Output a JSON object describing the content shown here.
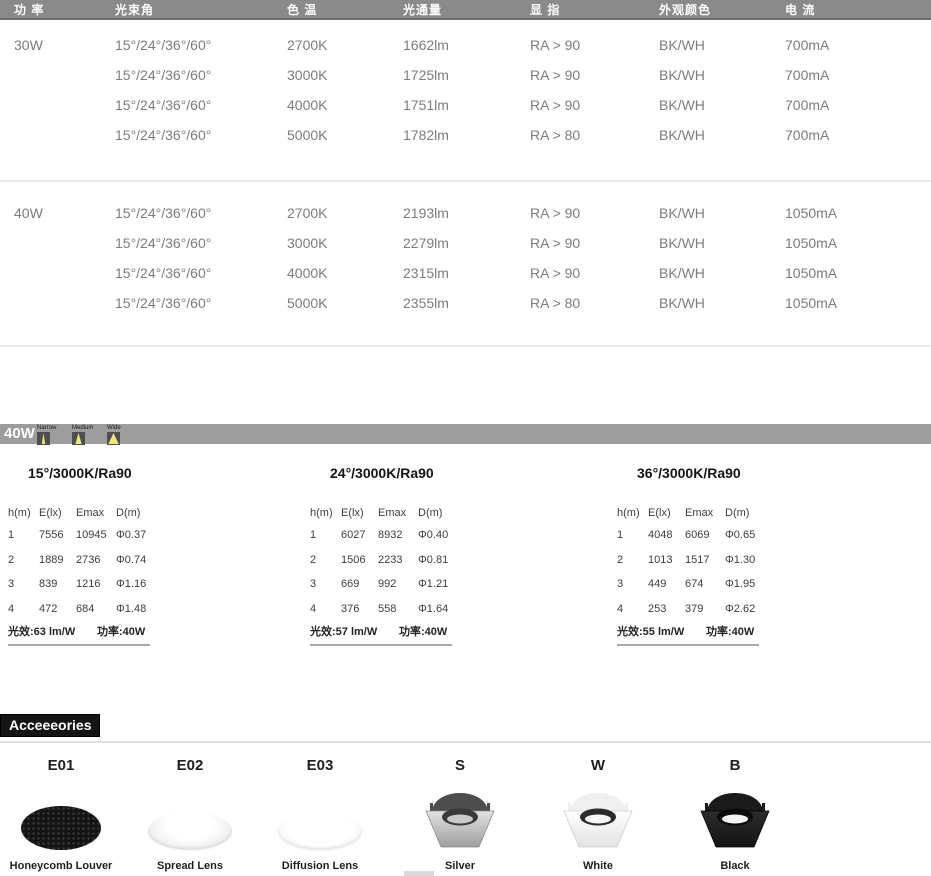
{
  "colors": {
    "header_bar": "#8a8a8a",
    "beam_bar": "#9d9d9d",
    "beam_yellow": "#ece584",
    "badge_bg": "#141414",
    "body_text": "#7c7c7c"
  },
  "spec_table": {
    "headers": [
      "功 率",
      "光束角",
      "色 温",
      "光通量",
      "显 指",
      "外观颜色",
      "电 流"
    ],
    "groups": [
      {
        "power": "30W",
        "rows": [
          {
            "beam": "15°/24°/36°/60°",
            "cct": "2700K",
            "flux": "1662lm",
            "cri": "RA > 90",
            "finish": "BK/WH",
            "current": "700mA"
          },
          {
            "beam": "15°/24°/36°/60°",
            "cct": "3000K",
            "flux": "1725lm",
            "cri": "RA > 90",
            "finish": "BK/WH",
            "current": "700mA"
          },
          {
            "beam": "15°/24°/36°/60°",
            "cct": "4000K",
            "flux": "1751lm",
            "cri": "RA > 90",
            "finish": "BK/WH",
            "current": "700mA"
          },
          {
            "beam": "15°/24°/36°/60°",
            "cct": "5000K",
            "flux": "1782lm",
            "cri": "RA > 80",
            "finish": "BK/WH",
            "current": "700mA"
          }
        ]
      },
      {
        "power": "40W",
        "rows": [
          {
            "beam": "15°/24°/36°/60°",
            "cct": "2700K",
            "flux": "2193lm",
            "cri": "RA > 90",
            "finish": "BK/WH",
            "current": "1050mA"
          },
          {
            "beam": "15°/24°/36°/60°",
            "cct": "3000K",
            "flux": "2279lm",
            "cri": "RA > 90",
            "finish": "BK/WH",
            "current": "1050mA"
          },
          {
            "beam": "15°/24°/36°/60°",
            "cct": "4000K",
            "flux": "2315lm",
            "cri": "RA > 90",
            "finish": "BK/WH",
            "current": "1050mA"
          },
          {
            "beam": "15°/24°/36°/60°",
            "cct": "5000K",
            "flux": "2355lm",
            "cri": "RA > 80",
            "finish": "BK/WH",
            "current": "1050mA"
          }
        ]
      }
    ]
  },
  "beam_bar": {
    "label": "40W",
    "modes": [
      {
        "label": "Narrow",
        "icon": "narrow-beam-icon"
      },
      {
        "label": "Medium",
        "icon": "medium-beam-icon"
      },
      {
        "label": "Wide",
        "icon": "wide-beam-icon"
      }
    ]
  },
  "photometric": {
    "tables": [
      {
        "title": "15°/3000K/Ra90",
        "headers": [
          "h(m)",
          "E(lx)",
          "Emax",
          "D(m)"
        ],
        "rows": [
          [
            "1",
            "7556",
            "10945",
            "Φ0.37"
          ],
          [
            "2",
            "1889",
            "2736",
            "Φ0.74"
          ],
          [
            "3",
            "839",
            "1216",
            "Φ1.16"
          ],
          [
            "4",
            "472",
            "684",
            "Φ1.48"
          ]
        ],
        "efficacy": "光效:63 lm/W",
        "power": "功率:40W"
      },
      {
        "title": "24°/3000K/Ra90",
        "headers": [
          "h(m)",
          "E(lx)",
          "Emax",
          "D(m)"
        ],
        "rows": [
          [
            "1",
            "6027",
            "8932",
            "Φ0.40"
          ],
          [
            "2",
            "1506",
            "2233",
            "Φ0.81"
          ],
          [
            "3",
            "669",
            "992",
            "Φ1.21"
          ],
          [
            "4",
            "376",
            "558",
            "Φ1.64"
          ]
        ],
        "efficacy": "光效:57 lm/W",
        "power": "功率:40W"
      },
      {
        "title": "36°/3000K/Ra90",
        "headers": [
          "h(m)",
          "E(lx)",
          "Emax",
          "D(m)"
        ],
        "rows": [
          [
            "1",
            "4048",
            "6069",
            "Φ0.65"
          ],
          [
            "2",
            "1013",
            "1517",
            "Φ1.30"
          ],
          [
            "3",
            "449",
            "674",
            "Φ1.95"
          ],
          [
            "4",
            "253",
            "379",
            "Φ2.62"
          ]
        ],
        "efficacy": "光效:55 lm/W",
        "power": "功率:40W"
      }
    ]
  },
  "accessories": {
    "title": "Acceeeories",
    "items": [
      {
        "code": "E01",
        "name": "Honeycomb Louver",
        "type": "honeycomb"
      },
      {
        "code": "E02",
        "name": "Spread Lens",
        "type": "lens-spread"
      },
      {
        "code": "E03",
        "name": "Diffusion Lens",
        "type": "lens-diffusion"
      },
      {
        "code": "S",
        "name": "Silver",
        "type": "trim-silver"
      },
      {
        "code": "W",
        "name": "White",
        "type": "trim-white"
      },
      {
        "code": "B",
        "name": "Black",
        "type": "trim-black"
      }
    ]
  }
}
